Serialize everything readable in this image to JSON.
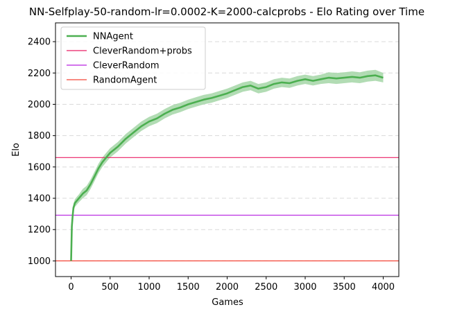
{
  "chart_data": {
    "type": "line",
    "title": "NN-Selfplay-50-random-lr=0.0002-K=2000-calcprobs - Elo Rating over Time",
    "xlabel": "Games",
    "ylabel": "Elo",
    "xlim": [
      -200,
      4200
    ],
    "ylim": [
      900,
      2520
    ],
    "xticks": [
      0,
      500,
      1000,
      1500,
      2000,
      2500,
      3000,
      3500,
      4000
    ],
    "yticks": [
      1000,
      1200,
      1400,
      1600,
      1800,
      2000,
      2200,
      2400
    ],
    "grid": "horizontal-dashed",
    "legend_position": "top-left",
    "series": [
      {
        "name": "NNAgent",
        "kind": "line-with-band",
        "color": "#4caf50",
        "band_color": "#a5d6a7",
        "x": [
          0,
          10,
          20,
          30,
          50,
          75,
          100,
          150,
          200,
          250,
          300,
          350,
          400,
          450,
          500,
          600,
          700,
          800,
          900,
          1000,
          1100,
          1200,
          1300,
          1400,
          1500,
          1600,
          1700,
          1800,
          1900,
          2000,
          2100,
          2200,
          2300,
          2400,
          2500,
          2600,
          2700,
          2800,
          2900,
          3000,
          3100,
          3200,
          3300,
          3400,
          3500,
          3600,
          3700,
          3800,
          3900,
          4000
        ],
        "y": [
          1000,
          1220,
          1290,
          1340,
          1370,
          1385,
          1400,
          1430,
          1450,
          1490,
          1540,
          1590,
          1630,
          1660,
          1690,
          1730,
          1780,
          1820,
          1860,
          1890,
          1910,
          1940,
          1965,
          1980,
          2000,
          2015,
          2030,
          2040,
          2055,
          2070,
          2090,
          2110,
          2120,
          2100,
          2110,
          2130,
          2140,
          2135,
          2150,
          2160,
          2150,
          2160,
          2170,
          2165,
          2170,
          2175,
          2170,
          2180,
          2185,
          2170
        ],
        "band_halfwidth": [
          0,
          10,
          20,
          25,
          25,
          25,
          25,
          30,
          30,
          30,
          30,
          30,
          30,
          30,
          30,
          30,
          30,
          30,
          30,
          30,
          30,
          30,
          30,
          30,
          30,
          30,
          30,
          30,
          30,
          30,
          30,
          30,
          30,
          30,
          30,
          30,
          30,
          30,
          30,
          30,
          30,
          30,
          35,
          35,
          35,
          35,
          35,
          35,
          35,
          30
        ]
      },
      {
        "name": "CleverRandom+probs",
        "kind": "hline",
        "color": "#e91e63",
        "y": 1660
      },
      {
        "name": "CleverRandom",
        "kind": "hline",
        "color": "#b620e0",
        "y": 1292
      },
      {
        "name": "RandomAgent",
        "kind": "hline",
        "color": "#f44336",
        "y": 1000
      }
    ]
  }
}
